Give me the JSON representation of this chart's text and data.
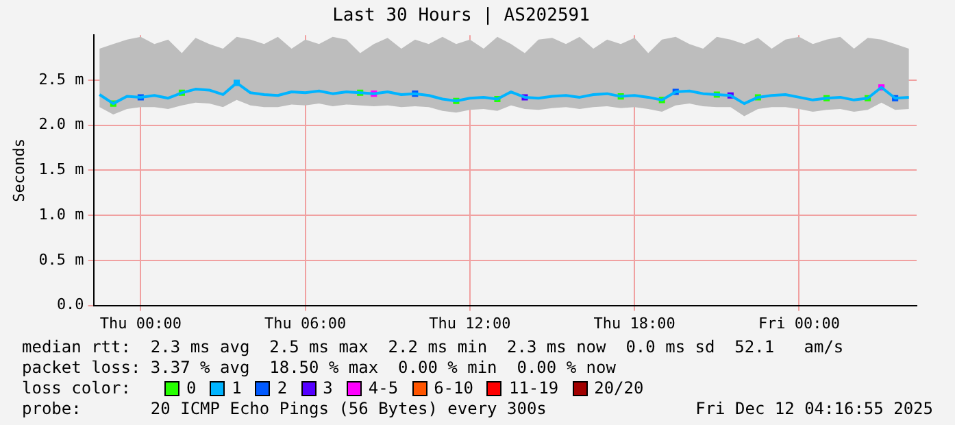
{
  "chart_data": {
    "type": "line",
    "title": "Last 30 Hours | AS202591",
    "ylabel": "Seconds",
    "legend_title": "loss color:",
    "legend": "bottom",
    "grid": true,
    "marker": "square",
    "line_style": "solid",
    "xlim": [
      "2025-12-10T22:17",
      "2025-12-12T04:17"
    ],
    "xticks": [
      {
        "value": "2025-12-11T00:00",
        "label": "Thu 00:00"
      },
      {
        "value": "2025-12-11T06:00",
        "label": "Thu 06:00"
      },
      {
        "value": "2025-12-11T12:00",
        "label": "Thu 12:00"
      },
      {
        "value": "2025-12-11T18:00",
        "label": "Thu 18:00"
      },
      {
        "value": "2025-12-12T00:00",
        "label": "Fri 00:00"
      }
    ],
    "ylim": [
      0,
      3.0
    ],
    "yticks": [
      {
        "value": 0,
        "label": "0.0"
      },
      {
        "value": 0.5,
        "label": "0.5 m"
      },
      {
        "value": 1.0,
        "label": "1.0 m"
      },
      {
        "value": 1.5,
        "label": "1.5 m"
      },
      {
        "value": 2.0,
        "label": "2.0 m"
      },
      {
        "value": 2.5,
        "label": "2.5 m"
      }
    ],
    "series": [
      {
        "type": "line",
        "marker": "none",
        "color": "#00b4ff",
        "x": [
          "2025-12-10T22:30",
          "2025-12-10T23:00",
          "2025-12-10T23:30",
          "2025-12-11T00:00",
          "2025-12-11T00:30",
          "2025-12-11T01:00",
          "2025-12-11T01:30",
          "2025-12-11T02:00",
          "2025-12-11T02:30",
          "2025-12-11T03:00",
          "2025-12-11T03:30",
          "2025-12-11T04:00",
          "2025-12-11T04:30",
          "2025-12-11T05:00",
          "2025-12-11T05:30",
          "2025-12-11T06:00",
          "2025-12-11T06:30",
          "2025-12-11T07:00",
          "2025-12-11T07:30",
          "2025-12-11T08:00",
          "2025-12-11T08:30",
          "2025-12-11T09:00",
          "2025-12-11T09:30",
          "2025-12-11T10:00",
          "2025-12-11T10:30",
          "2025-12-11T11:00",
          "2025-12-11T11:30",
          "2025-12-11T12:00",
          "2025-12-11T12:30",
          "2025-12-11T13:00",
          "2025-12-11T13:30",
          "2025-12-11T14:00",
          "2025-12-11T14:30",
          "2025-12-11T15:00",
          "2025-12-11T15:30",
          "2025-12-11T16:00",
          "2025-12-11T16:30",
          "2025-12-11T17:00",
          "2025-12-11T17:30",
          "2025-12-11T18:00",
          "2025-12-11T18:30",
          "2025-12-11T19:00",
          "2025-12-11T19:30",
          "2025-12-11T20:00",
          "2025-12-11T20:30",
          "2025-12-11T21:00",
          "2025-12-11T21:30",
          "2025-12-11T22:00",
          "2025-12-11T22:30",
          "2025-12-11T23:00",
          "2025-12-11T23:30",
          "2025-12-12T00:00",
          "2025-12-12T00:30",
          "2025-12-12T01:00",
          "2025-12-12T01:30",
          "2025-12-12T02:00",
          "2025-12-12T02:30",
          "2025-12-12T03:00",
          "2025-12-12T03:30",
          "2025-12-12T04:00"
        ],
        "values": [
          2.34,
          2.24,
          2.32,
          2.31,
          2.33,
          2.3,
          2.36,
          2.4,
          2.39,
          2.34,
          2.47,
          2.36,
          2.34,
          2.33,
          2.37,
          2.36,
          2.38,
          2.35,
          2.37,
          2.36,
          2.35,
          2.37,
          2.34,
          2.35,
          2.33,
          2.29,
          2.27,
          2.3,
          2.31,
          2.29,
          2.37,
          2.31,
          2.3,
          2.32,
          2.33,
          2.31,
          2.34,
          2.35,
          2.32,
          2.33,
          2.31,
          2.28,
          2.37,
          2.38,
          2.35,
          2.34,
          2.33,
          2.24,
          2.31,
          2.33,
          2.34,
          2.31,
          2.28,
          2.3,
          2.31,
          2.28,
          2.3,
          2.42,
          2.3,
          2.31
        ],
        "lower": [
          2.2,
          2.12,
          2.18,
          2.2,
          2.2,
          2.18,
          2.22,
          2.25,
          2.24,
          2.2,
          2.28,
          2.22,
          2.2,
          2.2,
          2.23,
          2.22,
          2.24,
          2.21,
          2.23,
          2.22,
          2.21,
          2.22,
          2.2,
          2.21,
          2.2,
          2.16,
          2.14,
          2.17,
          2.18,
          2.16,
          2.22,
          2.18,
          2.17,
          2.19,
          2.2,
          2.18,
          2.2,
          2.21,
          2.19,
          2.2,
          2.18,
          2.15,
          2.22,
          2.24,
          2.21,
          2.2,
          2.2,
          2.1,
          2.18,
          2.2,
          2.2,
          2.18,
          2.15,
          2.17,
          2.18,
          2.15,
          2.17,
          2.25,
          2.17,
          2.18
        ],
        "upper": [
          2.85,
          2.9,
          2.95,
          2.98,
          2.9,
          2.95,
          2.8,
          2.97,
          2.9,
          2.85,
          2.98,
          2.95,
          2.9,
          2.98,
          2.85,
          2.95,
          2.9,
          2.98,
          2.95,
          2.8,
          2.9,
          2.97,
          2.85,
          2.95,
          2.9,
          2.98,
          2.9,
          2.95,
          2.85,
          2.98,
          2.9,
          2.8,
          2.95,
          2.97,
          2.9,
          2.98,
          2.85,
          2.95,
          2.9,
          2.97,
          2.8,
          2.95,
          2.98,
          2.9,
          2.85,
          2.98,
          2.95,
          2.9,
          2.97,
          2.85,
          2.95,
          2.98,
          2.9,
          2.95,
          2.98,
          2.85,
          2.97,
          2.95,
          2.9,
          2.85
        ]
      },
      {
        "type": "scatter",
        "name": "0",
        "color": "#26ff00",
        "x": [
          "2025-12-10T23:00",
          "2025-12-11T01:30",
          "2025-12-11T08:00",
          "2025-12-11T11:30",
          "2025-12-11T13:00",
          "2025-12-11T17:30",
          "2025-12-11T19:00",
          "2025-12-11T21:00",
          "2025-12-11T22:30",
          "2025-12-12T01:00",
          "2025-12-12T02:30"
        ],
        "values": [
          2.24,
          2.36,
          2.36,
          2.27,
          2.29,
          2.32,
          2.28,
          2.34,
          2.31,
          2.3,
          2.3
        ]
      },
      {
        "type": "scatter",
        "name": "1",
        "color": "#00b4ff",
        "x": [
          "2025-12-11T03:30"
        ],
        "values": [
          2.47
        ]
      },
      {
        "type": "scatter",
        "name": "2",
        "color": "#0059ff",
        "x": [
          "2025-12-11T00:00",
          "2025-12-11T10:00",
          "2025-12-11T19:30",
          "2025-12-12T03:30"
        ],
        "values": [
          2.31,
          2.35,
          2.37,
          2.3
        ]
      },
      {
        "type": "scatter",
        "name": "3",
        "color": "#5500ff",
        "x": [
          "2025-12-11T14:00",
          "2025-12-11T21:30"
        ],
        "values": [
          2.31,
          2.33
        ]
      },
      {
        "type": "scatter",
        "name": "4-5",
        "color": "#ff00fe",
        "x": [
          "2025-12-11T08:30",
          "2025-12-12T03:00"
        ],
        "values": [
          2.35,
          2.42
        ]
      },
      {
        "type": "scatter",
        "name": "6-10",
        "color": "#ff5500"
      },
      {
        "type": "scatter",
        "name": "11-19",
        "color": "#ff0000"
      },
      {
        "type": "scatter",
        "name": "20/20",
        "color": "#a10000"
      }
    ],
    "annotations": [
      "median rtt:  2.3 ms avg  2.5 ms max  2.2 ms min  2.3 ms now  0.0 ms sd  52.1   am/s",
      "packet loss: 3.37 % avg  18.50 % max  0.00 % min  0.00 % now",
      "probe:       20 ICMP Echo Pings (56 Bytes) every 300s",
      "Fri Dec 12 04:16:55 2025"
    ]
  }
}
